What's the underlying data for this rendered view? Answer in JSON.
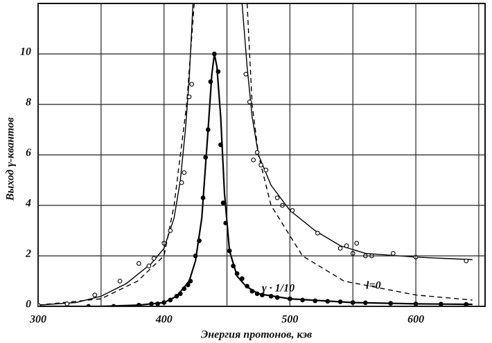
{
  "chart_data": {
    "type": "line",
    "xlabel": "Энергия протонов, кэв",
    "ylabel": "Выход γ-квантов",
    "xlim": [
      300,
      655
    ],
    "ylim": [
      0,
      12
    ],
    "xticks": [
      300,
      400,
      500,
      600
    ],
    "xminor": [
      350,
      450,
      550,
      650
    ],
    "yticks": [
      0,
      2,
      4,
      6,
      8,
      10
    ],
    "grid": true,
    "annotations": [
      "γ · 1/10",
      "l=0"
    ],
    "series": [
      {
        "style": "solid",
        "width": 1.4,
        "color": "#000000",
        "x": [
          300,
          330,
          350,
          370,
          390,
          400,
          408,
          413,
          417,
          420,
          423,
          442,
          462,
          466,
          470,
          475,
          485,
          500,
          520,
          540,
          560,
          600,
          645
        ],
        "values": [
          0.05,
          0.15,
          0.4,
          0.9,
          1.7,
          2.3,
          3.5,
          5,
          7,
          9,
          12,
          null,
          12,
          9.5,
          7.5,
          6,
          4.8,
          3.8,
          3.0,
          2.4,
          2.1,
          1.95,
          1.85
        ]
      },
      {
        "style": "dashed",
        "width": 1.4,
        "color": "#000000",
        "x": [
          300,
          350,
          379,
          400,
          408,
          413,
          418,
          424,
          445,
          466,
          470,
          475,
          485,
          510,
          543,
          600,
          645
        ],
        "values": [
          0.05,
          0.3,
          1,
          2,
          4,
          6,
          8,
          12,
          null,
          12,
          8,
          6,
          4,
          2,
          1,
          0.45,
          0.25
        ]
      },
      {
        "style": "solid",
        "width": 2.2,
        "color": "#000000",
        "x": [
          300,
          350,
          380,
          400,
          410,
          420,
          425,
          430,
          435,
          438,
          440,
          442,
          445,
          448,
          452,
          458,
          465,
          475,
          500,
          550,
          600,
          645
        ],
        "values": [
          0,
          0,
          0.05,
          0.15,
          0.4,
          1.0,
          1.8,
          3.5,
          7,
          9.2,
          10.0,
          9.5,
          7.5,
          4.5,
          2.2,
          1.2,
          0.8,
          0.5,
          0.3,
          0.15,
          0.1,
          0.08
        ]
      },
      {
        "marker": "open",
        "color": "#000000",
        "x": [
          300,
          323,
          345,
          365,
          380,
          388,
          392,
          400,
          405,
          414,
          416,
          420,
          422,
          465,
          468,
          471,
          474,
          477,
          481,
          490,
          494,
          502,
          522,
          540,
          545,
          550,
          553,
          560,
          565,
          582,
          600,
          640
        ],
        "values": [
          0.05,
          0.1,
          0.45,
          1.0,
          1.7,
          1.6,
          1.9,
          2.5,
          3.0,
          4.9,
          5.3,
          8.3,
          8.8,
          9.2,
          8.1,
          5.8,
          6.1,
          5.6,
          5.4,
          4.3,
          4.0,
          3.8,
          2.9,
          2.3,
          2.4,
          2.1,
          2.5,
          2.0,
          2.0,
          2.1,
          1.95,
          1.8
        ]
      },
      {
        "marker": "filled",
        "color": "#000000",
        "x": [
          340,
          360,
          380,
          390,
          395,
          400,
          405,
          410,
          413,
          416,
          419,
          421,
          425,
          428,
          431,
          433,
          435,
          437,
          440,
          443,
          445,
          447,
          449,
          452,
          455,
          458,
          462,
          466,
          470,
          474,
          478,
          485,
          490,
          500,
          510,
          520,
          530,
          540,
          550,
          560,
          580,
          600,
          620,
          640
        ],
        "values": [
          0,
          0,
          0.05,
          0.1,
          0.1,
          0.15,
          0.25,
          0.4,
          0.5,
          0.7,
          0.85,
          1.0,
          2.0,
          2.6,
          4.3,
          5.9,
          7.0,
          8.9,
          10.0,
          9.3,
          6.4,
          4.1,
          3.3,
          2.2,
          1.6,
          1.3,
          1.1,
          0.8,
          0.6,
          0.5,
          0.45,
          0.4,
          0.35,
          0.3,
          0.25,
          0.22,
          0.2,
          0.18,
          0.15,
          0.14,
          0.12,
          0.1,
          0.09,
          0.08
        ]
      }
    ]
  }
}
